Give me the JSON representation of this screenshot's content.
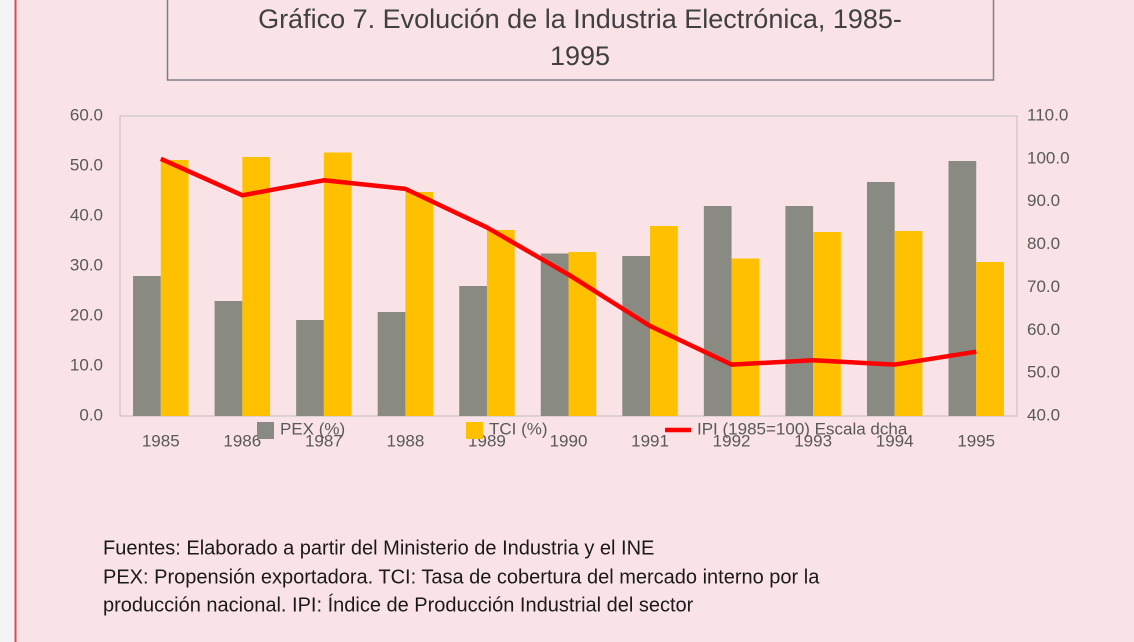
{
  "chart_data": {
    "type": "bar",
    "title": [
      "Gráfico 7. Evolución de la Industria Electrónica, 1985-",
      "1995"
    ],
    "categories": [
      "1985",
      "1986",
      "1987",
      "1988",
      "1989",
      "1990",
      "1991",
      "1992",
      "1993",
      "1994",
      "1995"
    ],
    "series": [
      {
        "name": "PEX (%)",
        "color": "#898a82",
        "values": [
          28,
          23,
          19.2,
          20.8,
          26,
          32.5,
          32,
          42,
          42,
          46.8,
          51
        ]
      },
      {
        "name": "TCI (%)",
        "color": "#ffc000",
        "values": [
          51.2,
          51.8,
          52.7,
          44.8,
          37.2,
          32.8,
          38,
          31.5,
          36.8,
          37,
          30.8
        ]
      },
      {
        "name": "IPI (1985=100) Escala dcha",
        "color": "#ff0000",
        "type": "line",
        "axis": "y2",
        "values": [
          100,
          91.5,
          95,
          93,
          84,
          73,
          61,
          52,
          53,
          52,
          55
        ]
      }
    ],
    "ylim": [
      0,
      60
    ],
    "yticks": [
      {
        "value": 0,
        "label": "0.0"
      },
      {
        "value": 10,
        "label": "10.0"
      },
      {
        "value": 20,
        "label": "20.0"
      },
      {
        "value": 30,
        "label": "30.0"
      },
      {
        "value": 40,
        "label": "40.0"
      },
      {
        "value": 50,
        "label": "50.0"
      },
      {
        "value": 60,
        "label": "60.0"
      }
    ],
    "y2lim": [
      40,
      110
    ],
    "y2ticks": [
      {
        "value": 40,
        "label": "40.0"
      },
      {
        "value": 50,
        "label": "50.0"
      },
      {
        "value": 60,
        "label": "60.0"
      },
      {
        "value": 70,
        "label": "70.0"
      },
      {
        "value": 80,
        "label": "80.0"
      },
      {
        "value": 90,
        "label": "90.0"
      },
      {
        "value": 100,
        "label": "100.0"
      },
      {
        "value": 110,
        "label": "110.0"
      }
    ],
    "grid": false,
    "legend": "bottom",
    "notes": [
      "Fuentes: Elaborado a partir del Ministerio de Industria y el INE",
      "PEX: Propensión exportadora. TCI: Tasa de cobertura del mercado interno por la",
      "producción nacional. IPI: Índice de Producción Industrial del sector"
    ]
  }
}
